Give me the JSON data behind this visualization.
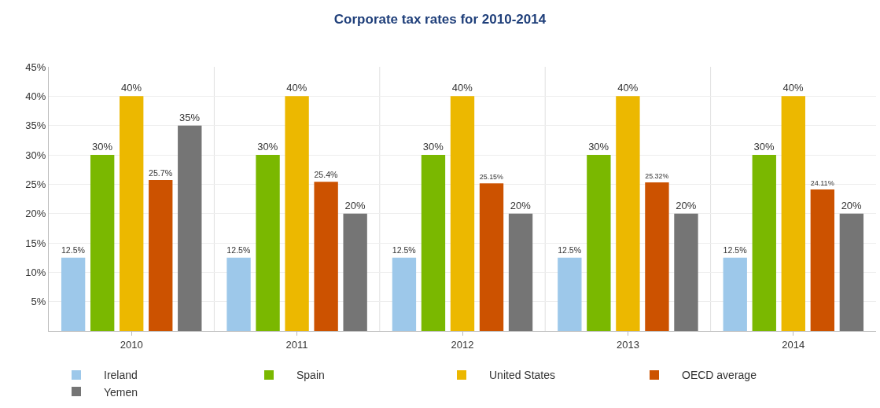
{
  "chart_data": {
    "type": "bar",
    "title": "Corporate tax rates for 2010-2014",
    "categories": [
      "2010",
      "2011",
      "2012",
      "2013",
      "2014"
    ],
    "series": [
      {
        "name": "Ireland",
        "color": "#9dc8ea",
        "values": [
          12.5,
          12.5,
          12.5,
          12.5,
          12.5
        ],
        "value_labels": [
          "12.5%",
          "12.5%",
          "12.5%",
          "12.5%",
          "12.5%"
        ]
      },
      {
        "name": "Spain",
        "color": "#7ab800",
        "values": [
          30,
          30,
          30,
          30,
          30
        ],
        "value_labels": [
          "30%",
          "30%",
          "30%",
          "30%",
          "30%"
        ]
      },
      {
        "name": "United States",
        "color": "#ecb800",
        "values": [
          40,
          40,
          40,
          40,
          40
        ],
        "value_labels": [
          "40%",
          "40%",
          "40%",
          "40%",
          "40%"
        ]
      },
      {
        "name": "OECD average",
        "color": "#cc5200",
        "values": [
          25.7,
          25.4,
          25.15,
          25.32,
          24.11
        ],
        "value_labels": [
          "25.7%",
          "25.4%",
          "25.15%",
          "25.32%",
          "24.11%"
        ]
      },
      {
        "name": "Yemen",
        "color": "#757575",
        "values": [
          35,
          20,
          20,
          20,
          20
        ],
        "value_labels": [
          "35%",
          "20%",
          "20%",
          "20%",
          "20%"
        ]
      }
    ],
    "ylim": [
      0,
      45
    ],
    "yticks": [
      {
        "value": 5,
        "label": "5%"
      },
      {
        "value": 10,
        "label": "10%"
      },
      {
        "value": 15,
        "label": "15%"
      },
      {
        "value": 20,
        "label": "20%"
      },
      {
        "value": 25,
        "label": "25%"
      },
      {
        "value": 30,
        "label": "30%"
      },
      {
        "value": 35,
        "label": "35%"
      },
      {
        "value": 40,
        "label": "40%"
      },
      {
        "value": 45,
        "label": "45%"
      }
    ],
    "grid": "y",
    "legend": "bottom left"
  }
}
